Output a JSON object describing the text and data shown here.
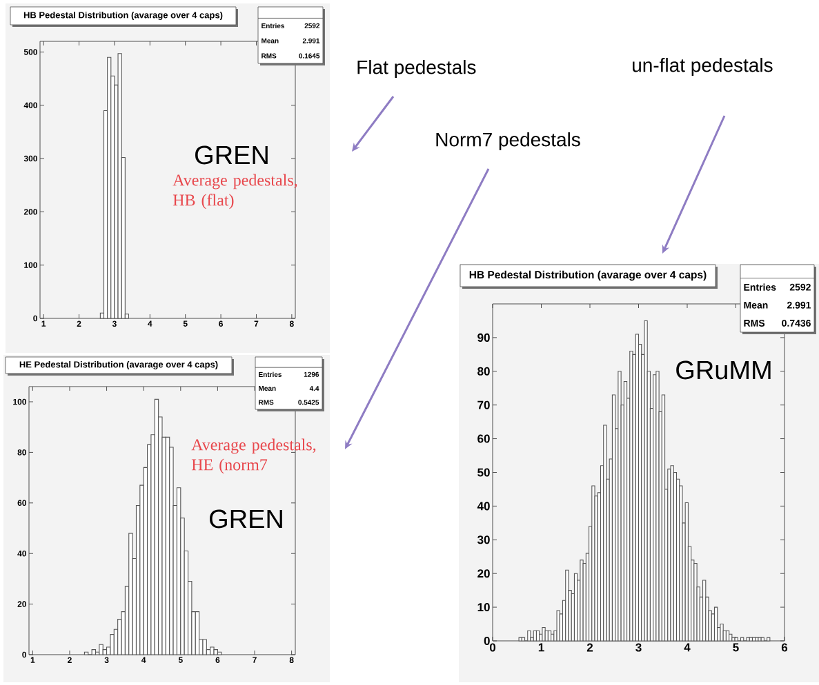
{
  "chart_data": [
    {
      "type": "histogram",
      "title": "HB Pedestal Distribution (avarage over 4 caps)",
      "color": "#555555",
      "bins": [
        2.6,
        2.7,
        2.8,
        2.9,
        3.0,
        3.1,
        3.2,
        3.3,
        3.4
      ],
      "values": [
        10,
        390,
        490,
        455,
        438,
        497,
        302,
        8
      ],
      "xlim": [
        0.9,
        8.1
      ],
      "ylim": [
        0,
        520
      ],
      "xticks": [
        1,
        2,
        3,
        4,
        5,
        6,
        7,
        8
      ],
      "yticks": [
        0,
        100,
        200,
        300,
        400,
        500
      ],
      "annotations": [
        "Entries",
        "2592",
        "Mean",
        "2.991",
        "RMS",
        "0.1645",
        "GREN",
        "Average pedestals, HB (flat)",
        "Flat pedestals"
      ]
    },
    {
      "type": "histogram",
      "title": "HE Pedestal Distribution (avarage over 4 caps)",
      "color": "#555555",
      "bins": [
        2.4,
        2.5,
        2.6,
        2.7,
        2.8,
        2.9,
        3.0,
        3.1,
        3.2,
        3.3,
        3.4,
        3.5,
        3.6,
        3.7,
        3.8,
        3.9,
        4.0,
        4.1,
        4.2,
        4.3,
        4.4,
        4.5,
        4.6,
        4.7,
        4.8,
        4.9,
        5.0,
        5.1,
        5.2,
        5.3,
        5.4,
        5.5,
        5.6,
        5.7,
        5.8,
        5.9,
        6.0,
        6.1
      ],
      "values": [
        1,
        0,
        2,
        1,
        4,
        2,
        3,
        8,
        10,
        14,
        17,
        27,
        48,
        38,
        59,
        67,
        74,
        83,
        87,
        101,
        94,
        86,
        86,
        82,
        59,
        66,
        54,
        41,
        29,
        17,
        17,
        6,
        6,
        2,
        3,
        2,
        1
      ],
      "xlim": [
        0.9,
        8.1
      ],
      "ylim": [
        0,
        106
      ],
      "xticks": [
        1,
        2,
        3,
        4,
        5,
        6,
        7,
        8
      ],
      "yticks": [
        0,
        20,
        40,
        60,
        80,
        100
      ],
      "annotations": [
        "Entries",
        "1296",
        "Mean",
        "4.4",
        "RMS",
        "0.5425",
        "Average pedestals, HE (norm7",
        "GREN",
        "Norm7 pedestals"
      ]
    },
    {
      "type": "histogram",
      "title": "HB Pedestal Distribution (avarage over 4 caps)",
      "color": "#555555",
      "bins": [
        0.54,
        0.6,
        0.66,
        0.72,
        0.78,
        0.84,
        0.9,
        0.96,
        1.02,
        1.08,
        1.14,
        1.2,
        1.26,
        1.32,
        1.38,
        1.44,
        1.5,
        1.56,
        1.62,
        1.68,
        1.74,
        1.8,
        1.86,
        1.92,
        1.98,
        2.04,
        2.1,
        2.16,
        2.22,
        2.28,
        2.34,
        2.4,
        2.46,
        2.52,
        2.58,
        2.64,
        2.7,
        2.76,
        2.82,
        2.88,
        2.94,
        3.0,
        3.06,
        3.12,
        3.18,
        3.24,
        3.3,
        3.36,
        3.42,
        3.48,
        3.54,
        3.6,
        3.66,
        3.72,
        3.78,
        3.84,
        3.9,
        3.96,
        4.02,
        4.08,
        4.14,
        4.2,
        4.26,
        4.32,
        4.38,
        4.44,
        4.5,
        4.56,
        4.62,
        4.68,
        4.74,
        4.8,
        4.86,
        4.92,
        4.98,
        5.04,
        5.1,
        5.16,
        5.22,
        5.28,
        5.34,
        5.4,
        5.46,
        5.52,
        5.58,
        5.64,
        5.7
      ],
      "values": [
        1,
        1,
        0,
        3,
        1,
        3,
        3,
        2,
        4,
        3,
        3,
        2,
        3,
        9,
        8,
        12,
        21,
        15,
        14,
        20,
        18,
        24,
        23,
        26,
        34,
        46,
        43,
        44,
        52,
        64,
        48,
        54,
        73,
        63,
        80,
        70,
        77,
        72,
        86,
        85,
        91,
        88,
        85,
        95,
        80,
        69,
        79,
        80,
        68,
        73,
        45,
        51,
        52,
        50,
        48,
        46,
        35,
        41,
        28,
        24,
        23,
        16,
        13,
        18,
        13,
        9,
        8,
        10,
        4,
        5,
        3,
        3,
        2,
        1,
        1,
        0,
        1,
        0,
        1,
        1,
        1,
        1,
        1,
        1,
        0,
        1
      ],
      "xlim": [
        0,
        6
      ],
      "ylim": [
        0,
        100
      ],
      "xticks": [
        0,
        1,
        2,
        3,
        4,
        5,
        6
      ],
      "yticks": [
        0,
        10,
        20,
        30,
        40,
        50,
        60,
        70,
        80,
        90
      ],
      "annotations": [
        "Entries",
        "2592",
        "Mean",
        "2.991",
        "RMS",
        "0.7436",
        "GRuMM",
        "un-flat pedestals"
      ]
    }
  ]
}
